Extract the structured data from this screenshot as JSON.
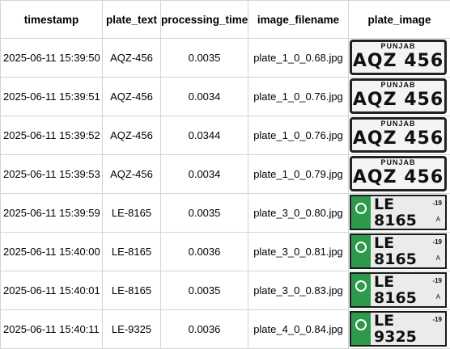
{
  "columns": [
    "timestamp",
    "plate_text",
    "processing_time",
    "image_filename",
    "plate_image"
  ],
  "rows": [
    {
      "timestamp": "2025-06-11 15:39:50",
      "plate_text": "AQZ-456",
      "processing_time": "0.0035",
      "image_filename": "plate_1_0_0.68.jpg",
      "plate": {
        "style": "white",
        "region": "PUNJAB",
        "number": "AQZ 456"
      }
    },
    {
      "timestamp": "2025-06-11 15:39:51",
      "plate_text": "AQZ-456",
      "processing_time": "0.0034",
      "image_filename": "plate_1_0_0.76.jpg",
      "plate": {
        "style": "white",
        "region": "PUNJAB",
        "number": "AQZ 456"
      }
    },
    {
      "timestamp": "2025-06-11 15:39:52",
      "plate_text": "AQZ-456",
      "processing_time": "0.0344",
      "image_filename": "plate_1_0_0.76.jpg",
      "plate": {
        "style": "white",
        "region": "PUNJAB",
        "number": "AQZ 456"
      }
    },
    {
      "timestamp": "2025-06-11 15:39:53",
      "plate_text": "AQZ-456",
      "processing_time": "0.0034",
      "image_filename": "plate_1_0_0.79.jpg",
      "plate": {
        "style": "white",
        "region": "PUNJAB",
        "number": "AQZ 456"
      }
    },
    {
      "timestamp": "2025-06-11 15:39:59",
      "plate_text": "LE-8165",
      "processing_time": "0.0035",
      "image_filename": "plate_3_0_0.80.jpg",
      "plate": {
        "style": "green",
        "line1": "LE",
        "line2": "8165",
        "year": "-19",
        "mark": "A"
      }
    },
    {
      "timestamp": "2025-06-11 15:40:00",
      "plate_text": "LE-8165",
      "processing_time": "0.0036",
      "image_filename": "plate_3_0_0.81.jpg",
      "plate": {
        "style": "green",
        "line1": "LE",
        "line2": "8165",
        "year": "-19",
        "mark": "A"
      }
    },
    {
      "timestamp": "2025-06-11 15:40:01",
      "plate_text": "LE-8165",
      "processing_time": "0.0035",
      "image_filename": "plate_3_0_0.83.jpg",
      "plate": {
        "style": "green",
        "line1": "LE",
        "line2": "8165",
        "year": "-19",
        "mark": "A"
      }
    },
    {
      "timestamp": "2025-06-11 15:40:11",
      "plate_text": "LE-9325",
      "processing_time": "0.0036",
      "image_filename": "plate_4_0_0.84.jpg",
      "plate": {
        "style": "green",
        "line1": "LE",
        "line2": "9325",
        "year": "-19",
        "mark": ""
      }
    }
  ],
  "colors": {
    "plate_green": "#2d9a4b",
    "grid_line": "#d4d4d4"
  }
}
